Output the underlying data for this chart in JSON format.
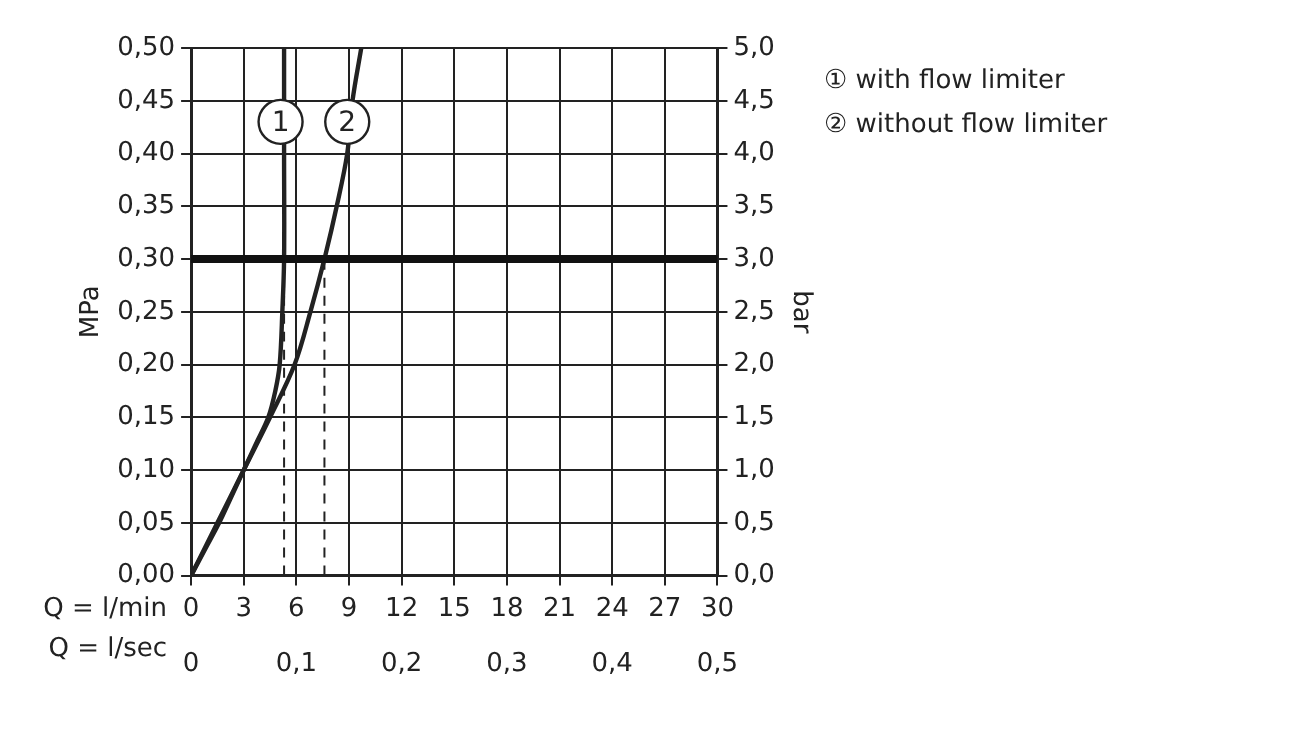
{
  "chart_data": {
    "type": "line",
    "xlabel": "Q = l/min",
    "x2label": "Q = l/sec",
    "ylabel": "MPa",
    "y2label": "bar",
    "xlim": [
      0,
      30
    ],
    "xticks": [
      0,
      3,
      6,
      9,
      12,
      15,
      18,
      21,
      24,
      27,
      30
    ],
    "x2lim": [
      0,
      0.5
    ],
    "x2ticks": [
      0,
      {
        "value": 0.1,
        "label": "0,1"
      },
      {
        "value": 0.2,
        "label": "0,2"
      },
      {
        "value": 0.3,
        "label": "0,3"
      },
      {
        "value": 0.4,
        "label": "0,4"
      },
      {
        "value": 0.5,
        "label": "0,5"
      }
    ],
    "ylim": [
      0,
      0.5
    ],
    "yticks": [
      {
        "value": 0,
        "label": "0,00"
      },
      {
        "value": 0.05,
        "label": "0,05"
      },
      {
        "value": 0.1,
        "label": "0,10"
      },
      {
        "value": 0.15,
        "label": "0,15"
      },
      {
        "value": 0.2,
        "label": "0,20"
      },
      {
        "value": 0.25,
        "label": "0,25"
      },
      {
        "value": 0.3,
        "label": "0,30"
      },
      {
        "value": 0.35,
        "label": "0,35"
      },
      {
        "value": 0.4,
        "label": "0,40"
      },
      {
        "value": 0.45,
        "label": "0,45"
      },
      {
        "value": 0.5,
        "label": "0,50"
      }
    ],
    "y2lim": [
      0,
      5
    ],
    "y2ticks": [
      {
        "value": 0,
        "label": "0,0"
      },
      {
        "value": 0.5,
        "label": "0,5"
      },
      {
        "value": 1,
        "label": "1,0"
      },
      {
        "value": 1.5,
        "label": "1,5"
      },
      {
        "value": 2,
        "label": "2,0"
      },
      {
        "value": 2.5,
        "label": "2,5"
      },
      {
        "value": 3,
        "label": "3,0"
      },
      {
        "value": 3.5,
        "label": "3,5"
      },
      {
        "value": 4,
        "label": "4,0"
      },
      {
        "value": 4.5,
        "label": "4,5"
      },
      {
        "value": 5,
        "label": "5,0"
      }
    ],
    "series": [
      {
        "name": "① with flow limiter",
        "color": "#222222",
        "x": [
          0,
          0.8,
          1.6,
          2.3,
          3,
          3.7,
          4.4,
          4.8,
          5.05,
          5.2,
          5.3,
          5.3,
          5.3
        ],
        "values": [
          0,
          0.025,
          0.05,
          0.075,
          0.1,
          0.125,
          0.15,
          0.175,
          0.2,
          0.25,
          0.3,
          0.4,
          0.5
        ]
      },
      {
        "name": "② without flow limiter",
        "color": "#222222",
        "x": [
          0,
          1.5,
          3,
          4.5,
          5.9,
          6.8,
          7.6,
          8.3,
          8.9,
          9.2,
          9.7
        ],
        "values": [
          0,
          0.05,
          0.1,
          0.15,
          0.2,
          0.25,
          0.3,
          0.35,
          0.4,
          0.45,
          0.5
        ]
      },
      {
        "type": "line",
        "line_style": "dashed",
        "color": "#222222",
        "x": [
          5.3,
          5.3
        ],
        "values": [
          0,
          0.3
        ]
      },
      {
        "type": "line",
        "line_style": "dashed",
        "color": "#222222",
        "x": [
          7.6,
          7.6
        ],
        "values": [
          0,
          0.3
        ]
      }
    ],
    "ref_lines": [
      {
        "axis": "y",
        "value": 0.3,
        "color": "#111111"
      }
    ],
    "annotations": [
      {
        "text": "1",
        "x": 5.1,
        "y": 0.43
      },
      {
        "text": "2",
        "x": 8.9,
        "y": 0.43
      }
    ],
    "grid": true,
    "legend": "top right",
    "marker": "none",
    "line_style": "solid"
  }
}
